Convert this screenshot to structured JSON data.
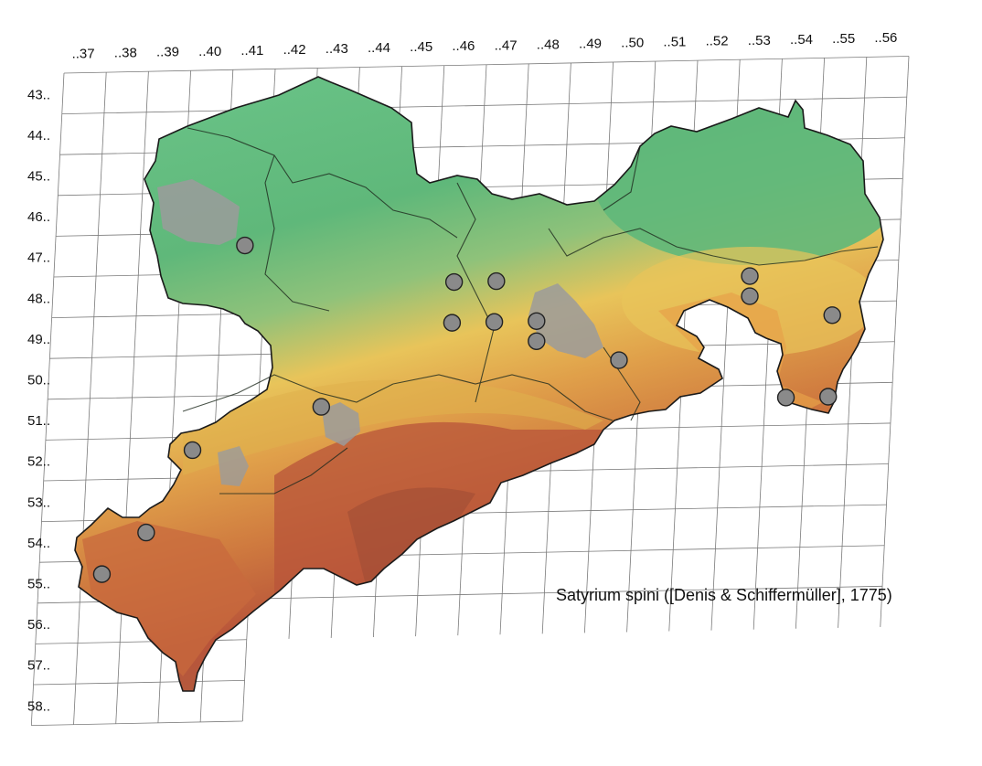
{
  "map": {
    "title": "Satyrium spini ([Denis & Schiffermüller], 1775)",
    "grid": {
      "columns": [
        "..37",
        "..38",
        "..39",
        "..40",
        "..41",
        "..42",
        "..43",
        "..44",
        "..45",
        "..46",
        "..47",
        "..48",
        "..49",
        "..50",
        "..51",
        "..52",
        "..53",
        "..54",
        "..55",
        "..56"
      ],
      "rows": [
        "43..",
        "44..",
        "45..",
        "46..",
        "47..",
        "48..",
        "49..",
        "50..",
        "51..",
        "52..",
        "53..",
        "54..",
        "55..",
        "56..",
        "57..",
        "58.."
      ]
    },
    "colors": {
      "lowland": "#5fb87a",
      "hills": "#e8c45a",
      "upland": "#cf7a3f",
      "mountain": "#b8543a",
      "urban": "#9b9b9b",
      "grid_line": "#7a7a7a",
      "record_marker": "#8a8a8a",
      "marker_outline": "#222222"
    },
    "records": [
      {
        "column": "..41",
        "row": "47.."
      },
      {
        "column": "..46",
        "row": "48.."
      },
      {
        "column": "..46",
        "row": "49.."
      },
      {
        "column": "..47",
        "row": "48.."
      },
      {
        "column": "..47",
        "row": "49.."
      },
      {
        "column": "..48",
        "row": "49.."
      },
      {
        "column": "..48",
        "row": "49.."
      },
      {
        "column": "..50",
        "row": "50.."
      },
      {
        "column": "..53",
        "row": "48.."
      },
      {
        "column": "..53",
        "row": "48.."
      },
      {
        "column": "..55",
        "row": "49.."
      },
      {
        "column": "..54",
        "row": "51.."
      },
      {
        "column": "..55",
        "row": "51.."
      },
      {
        "column": "..43",
        "row": "51.."
      },
      {
        "column": "..40",
        "row": "52.."
      },
      {
        "column": "..39",
        "row": "54.."
      },
      {
        "column": "..38",
        "row": "55.."
      }
    ]
  }
}
